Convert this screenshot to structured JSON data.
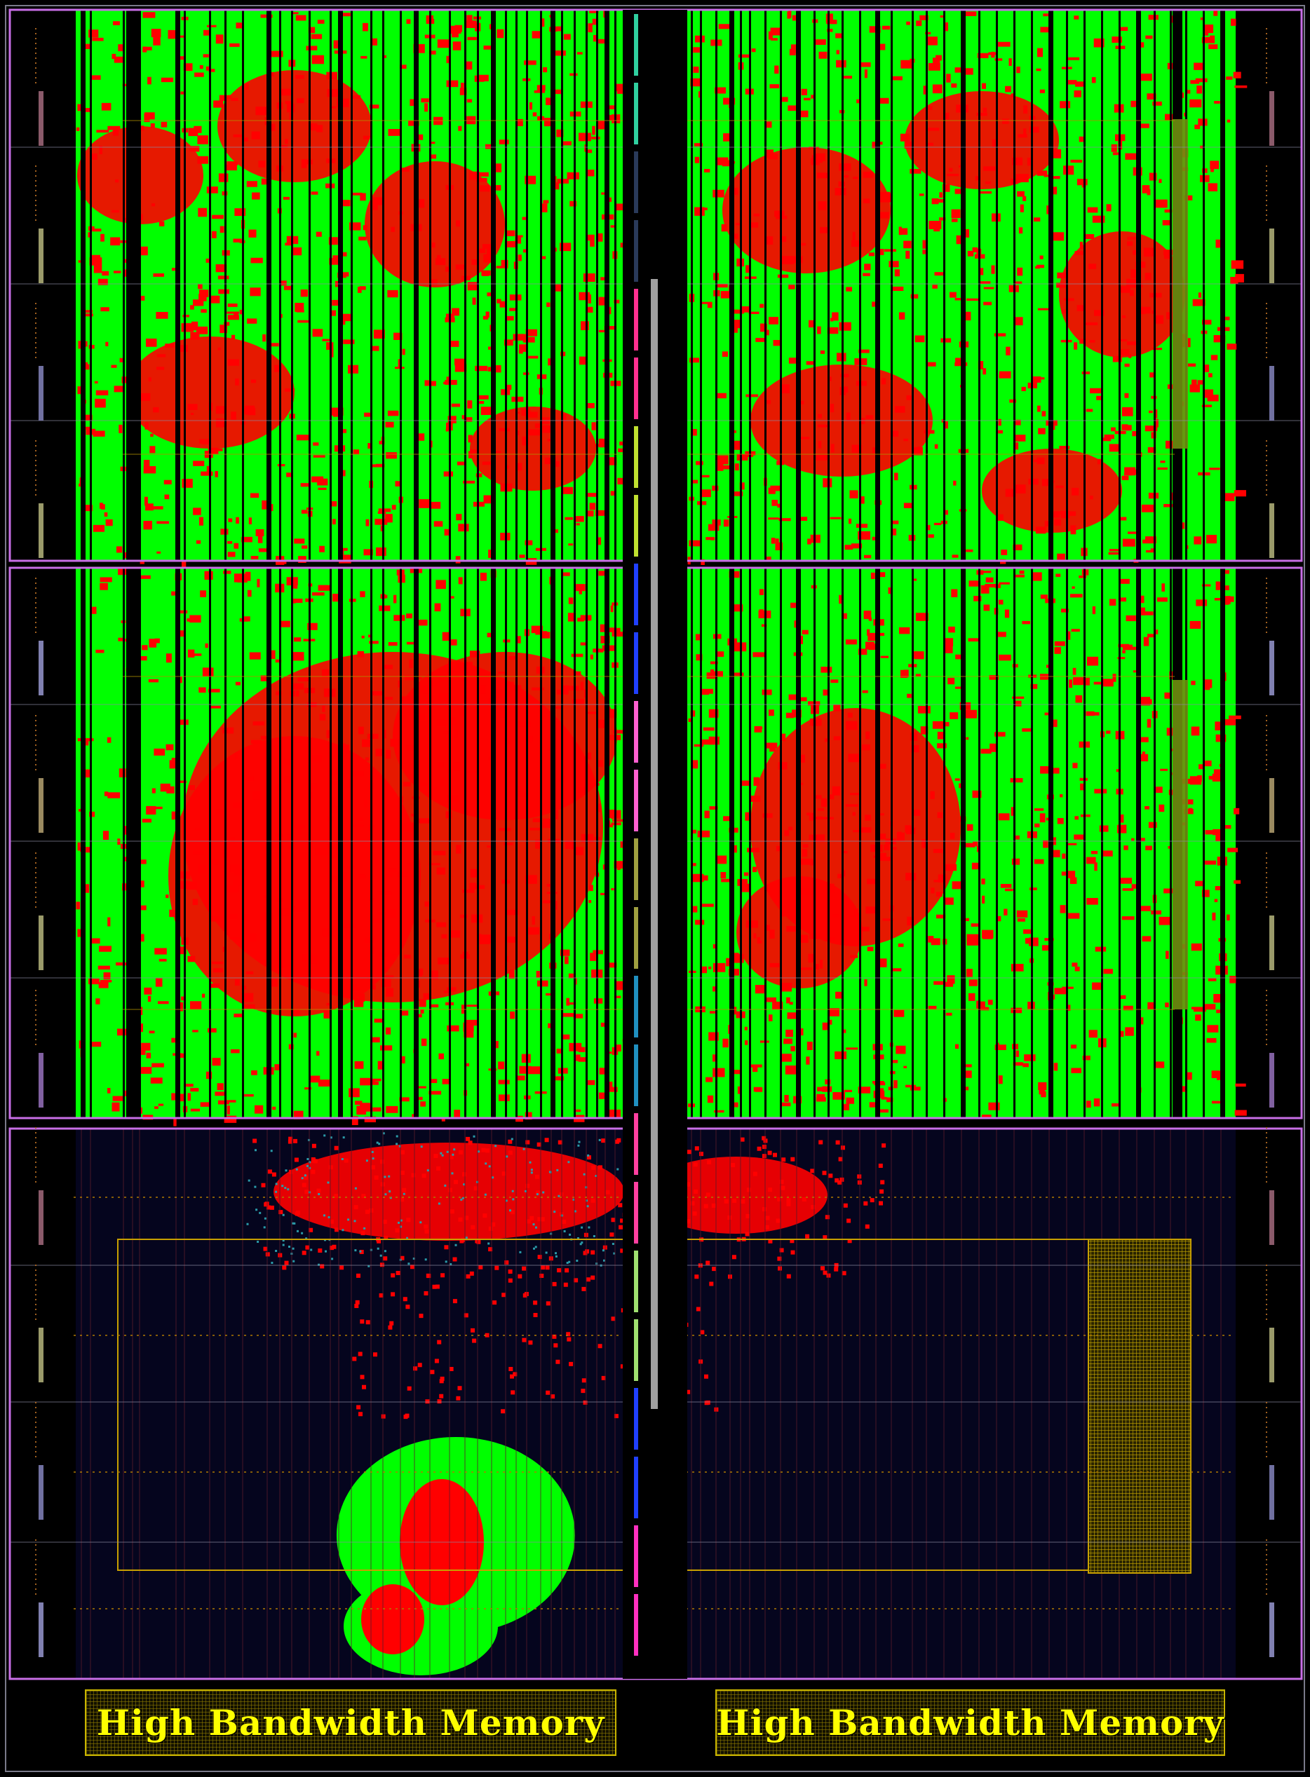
{
  "hbm": {
    "left_label": "High Bandwidth Memory",
    "right_label": "High Bandwidth Memory"
  },
  "colors": {
    "background": "#000000",
    "empty_fabric": "#05051e",
    "utilized_logic": "#00ff00",
    "congested_logic": "#ff0000",
    "routing_nets": "#2a9aa8",
    "hard_block_columns": "#000000",
    "slr_boundary": "#c86ee6",
    "clock_region_lines": "#8a8aa0",
    "pblock_outline": "#c8a000",
    "hbm_text": "#ffff00",
    "spine": "#a0a0a0"
  },
  "icons": {
    "io_bank_marker": "io-bank-icon"
  }
}
